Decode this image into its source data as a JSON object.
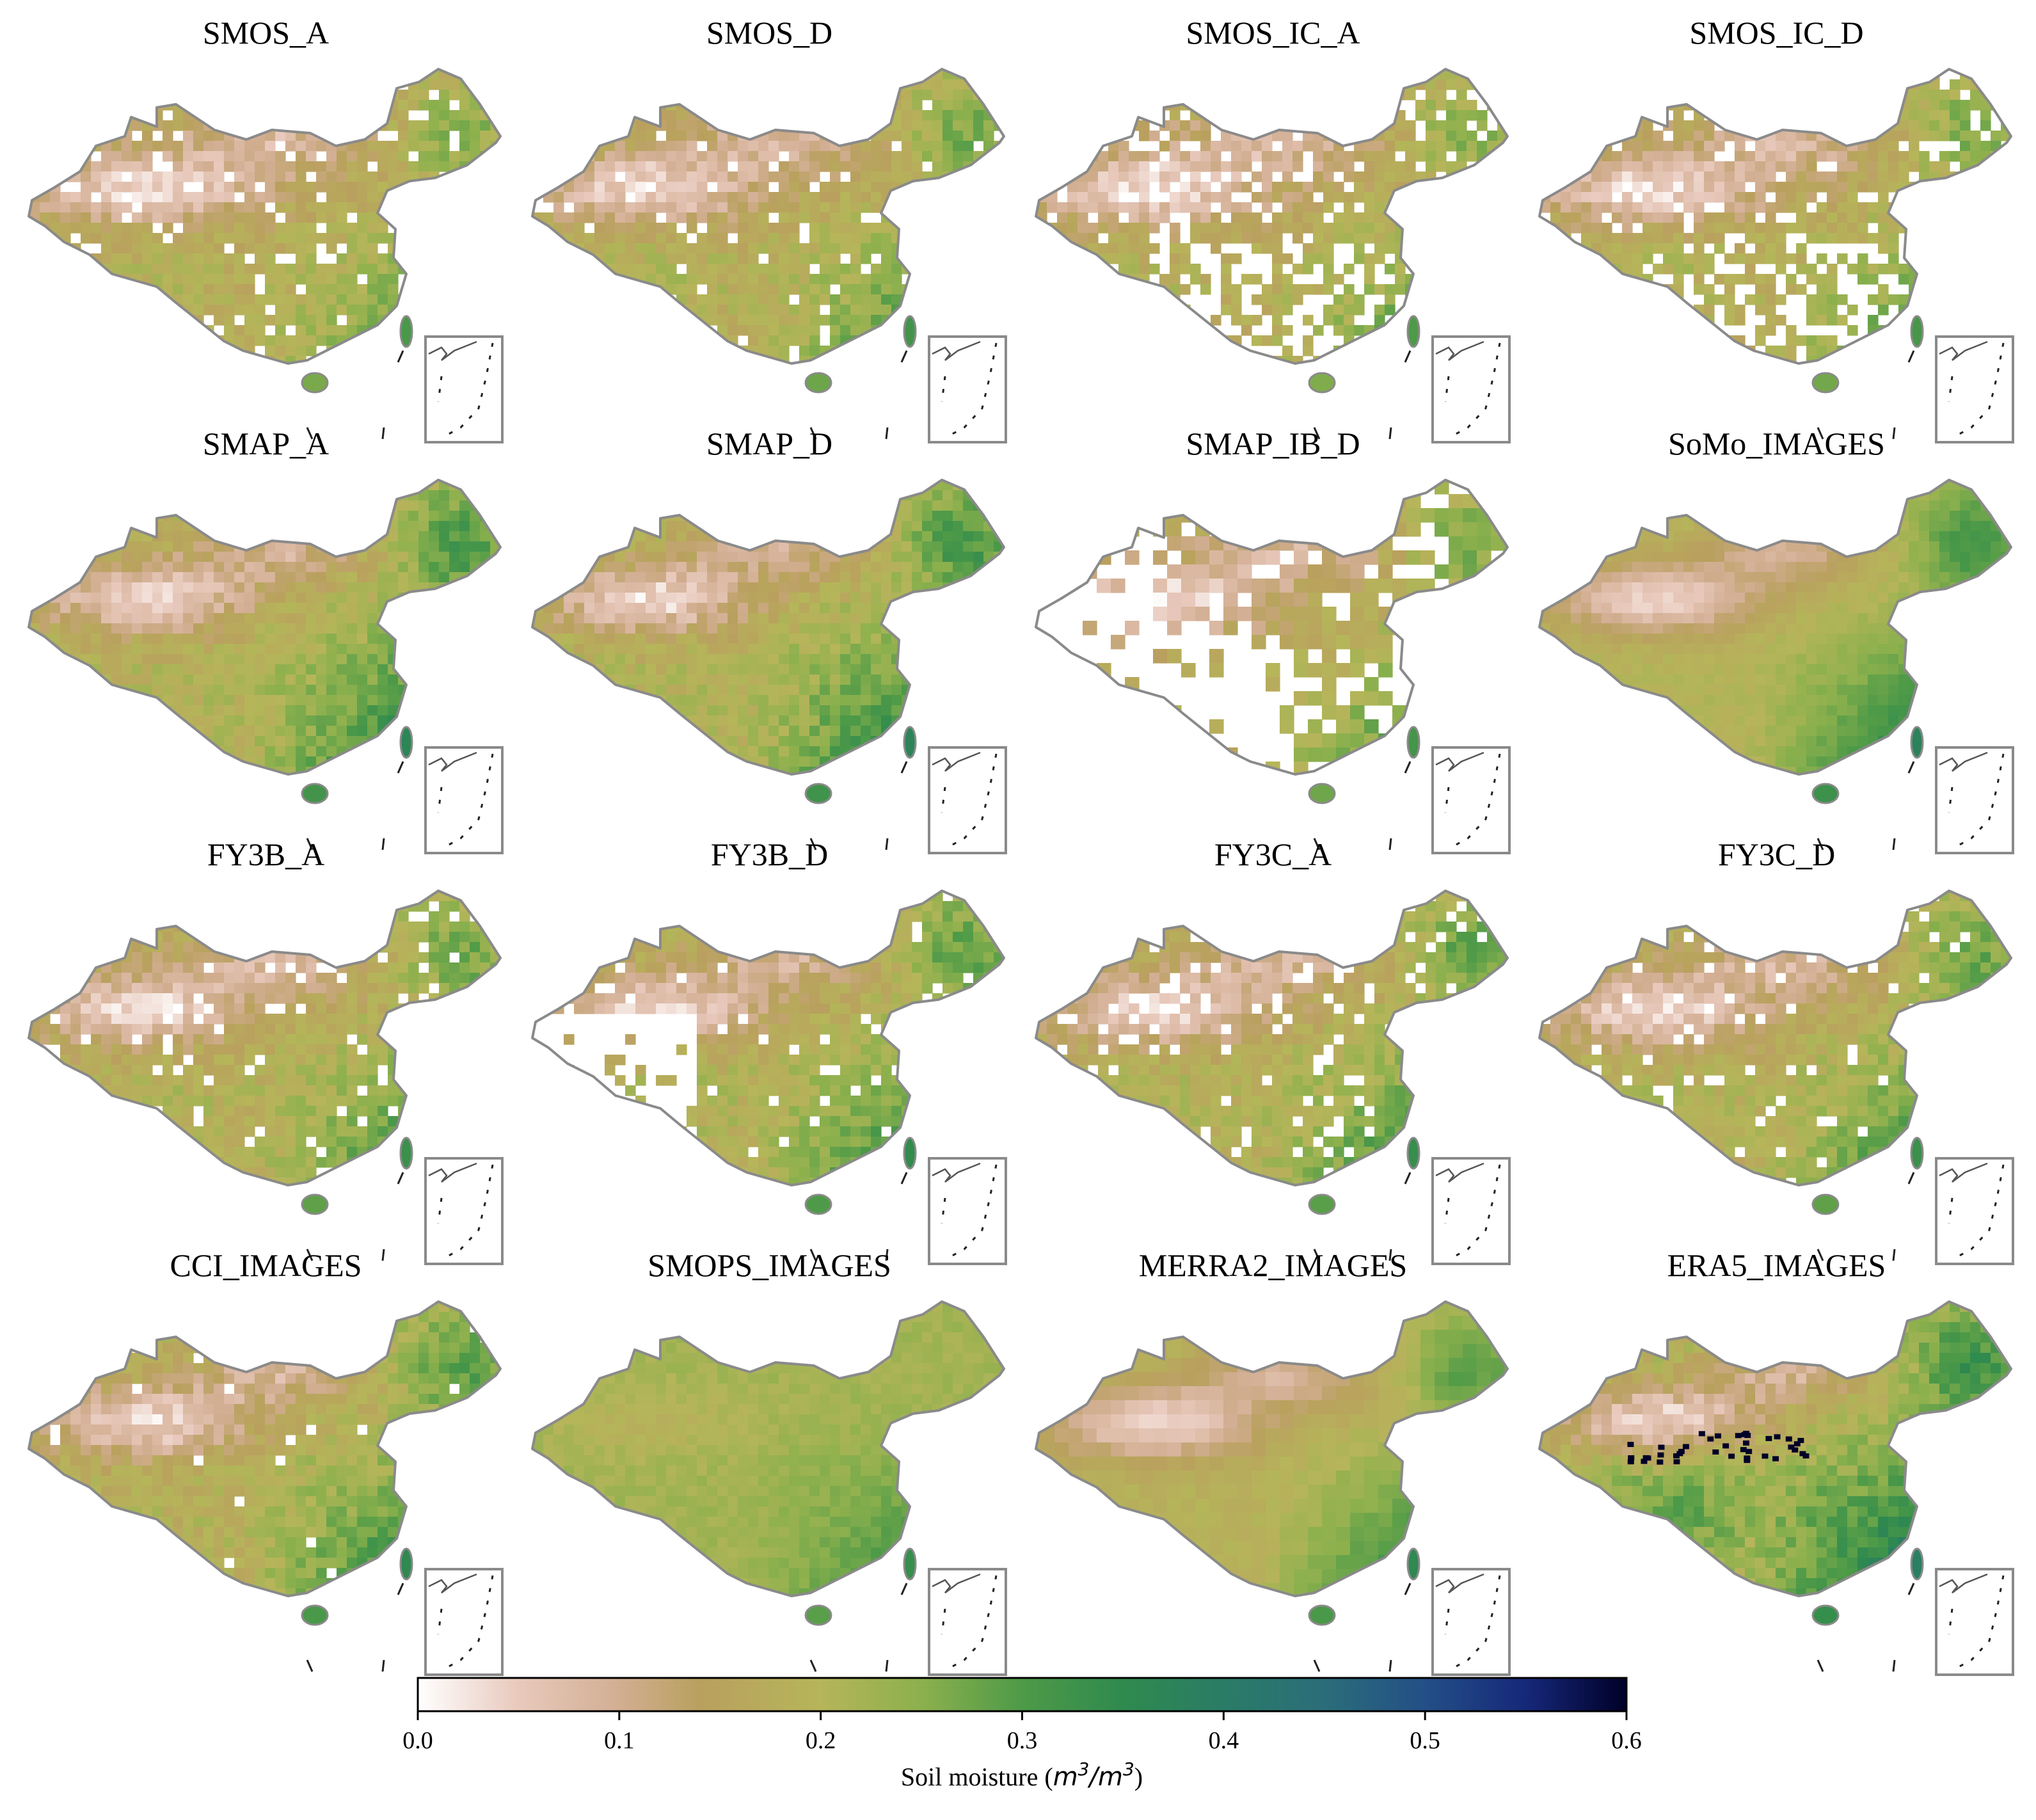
{
  "figure": {
    "panels": [
      {
        "title": "SMOS_A",
        "pattern": "smos",
        "wetness": 0.42,
        "gaps": 0.1
      },
      {
        "title": "SMOS_D",
        "pattern": "smos",
        "wetness": 0.46,
        "gaps": 0.08
      },
      {
        "title": "SMOS_IC_A",
        "pattern": "smosic",
        "wetness": 0.4,
        "gaps": 0.3
      },
      {
        "title": "SMOS_IC_D",
        "pattern": "smosic",
        "wetness": 0.44,
        "gaps": 0.22
      },
      {
        "title": "SMAP_A",
        "pattern": "smap",
        "wetness": 0.62,
        "gaps": 0.0
      },
      {
        "title": "SMAP_D",
        "pattern": "smap",
        "wetness": 0.64,
        "gaps": 0.0
      },
      {
        "title": "SMAP_IB_D",
        "pattern": "smapib",
        "wetness": 0.45,
        "gaps": 0.55
      },
      {
        "title": "SoMo_IMAGES",
        "pattern": "somo",
        "wetness": 0.66,
        "gaps": 0.0
      },
      {
        "title": "FY3B_A",
        "pattern": "fy",
        "wetness": 0.5,
        "gaps": 0.08
      },
      {
        "title": "FY3B_D",
        "pattern": "fyd",
        "wetness": 0.55,
        "gaps": 0.25
      },
      {
        "title": "FY3C_A",
        "pattern": "fy",
        "wetness": 0.52,
        "gaps": 0.15
      },
      {
        "title": "FY3C_D",
        "pattern": "fy",
        "wetness": 0.5,
        "gaps": 0.06
      },
      {
        "title": "CCI_IMAGES",
        "pattern": "cci",
        "wetness": 0.58,
        "gaps": 0.03
      },
      {
        "title": "SMOPS_IMAGES",
        "pattern": "smops",
        "wetness": 0.52,
        "gaps": 0.0
      },
      {
        "title": "MERRA2_IMAGES",
        "pattern": "merra",
        "wetness": 0.58,
        "gaps": 0.0
      },
      {
        "title": "ERA5_IMAGES",
        "pattern": "era5",
        "wetness": 0.7,
        "gaps": 0.0
      }
    ]
  },
  "colorbar": {
    "label_prefix": "Soil moisture (",
    "label_unit_base1": "m",
    "label_unit_sup1": "3",
    "label_unit_slash": "/",
    "label_unit_base2": "m",
    "label_unit_sup2": "3",
    "label_suffix": ")",
    "min": 0.0,
    "max": 0.6,
    "ticks": [
      "0.0",
      "0.1",
      "0.2",
      "0.3",
      "0.4",
      "0.5",
      "0.6"
    ],
    "stops": [
      {
        "value": 0.0,
        "color": "#ffffff"
      },
      {
        "value": 0.05,
        "color": "#e8c9bc"
      },
      {
        "value": 0.1,
        "color": "#d2ae92"
      },
      {
        "value": 0.14,
        "color": "#b9a05e"
      },
      {
        "value": 0.2,
        "color": "#b6b55a"
      },
      {
        "value": 0.25,
        "color": "#8cb04d"
      },
      {
        "value": 0.3,
        "color": "#4e9a48"
      },
      {
        "value": 0.35,
        "color": "#2f8a4e"
      },
      {
        "value": 0.4,
        "color": "#2a7c66"
      },
      {
        "value": 0.45,
        "color": "#2b6d7a"
      },
      {
        "value": 0.5,
        "color": "#234f86"
      },
      {
        "value": 0.55,
        "color": "#16287a"
      },
      {
        "value": 0.6,
        "color": "#000028"
      }
    ]
  }
}
